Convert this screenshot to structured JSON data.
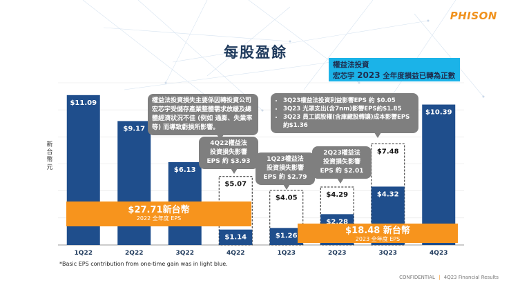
{
  "slide": {
    "title": "每股盈餘",
    "logo": "PHISON",
    "ylabel": "新台幣元",
    "footnote": "*Basic EPS contribution from one-time gain was in light blue.",
    "footer_left": "CONFIDENTIAL",
    "footer_right": "4Q23 Financial Results"
  },
  "colors": {
    "bar": "#1f4e8c",
    "accent": "#f7941d",
    "callout": "#7f7f7f",
    "highlight": "#1bb3e8"
  },
  "callouts": {
    "main": "權益法投資損失主要係因轉投資公司宏芯宇受儲存產業整體需求放緩及總體經濟狀況不佳 (例如 通膨、失業率等) 而導致虧損所影響。",
    "q4_22": [
      "4Q22權益法",
      "投資損失影響",
      "EPS 約 $3.93"
    ],
    "q1_23": [
      "1Q23權益法",
      "投資損失影響",
      "EPS 約 $2.79"
    ],
    "q2_23": [
      "2Q23權益法",
      "投資損失影響",
      "EPS 約 $2.01"
    ],
    "q3_23": [
      "3Q23權益法投資利益影響EPS 約 $0.05",
      "3Q23 光罩支出(含7nm)影響EPS約$1.85",
      "3Q23 員工認股權(含庫藏股轉讓)成本影響EPS約$1.36"
    ],
    "top_line1": "權益法投資",
    "top_line2a": "宏芯宇",
    "top_line2b": "2023",
    "top_line2c": "全年度損益已轉為正數"
  },
  "banners": {
    "y2022": {
      "amount": "$27.71新台幣",
      "label": "2022 全年度 EPS"
    },
    "y2023": {
      "amount": "$18.48 新台幣",
      "label": "2023 全年度 EPS"
    }
  },
  "chart_data": {
    "type": "bar",
    "title": "每股盈餘",
    "ylabel": "新台幣元",
    "categories": [
      "1Q22",
      "2Q22",
      "3Q22",
      "4Q22",
      "1Q23",
      "2Q23",
      "3Q23",
      "4Q23"
    ],
    "values": [
      11.09,
      9.17,
      6.13,
      1.14,
      1.26,
      2.28,
      4.32,
      10.39
    ],
    "value_labels": [
      "$11.09",
      "$9.17",
      "$6.13",
      "$1.14",
      "$1.26",
      "$2.28",
      "$4.32",
      "$10.39"
    ],
    "excluding_loss_values": [
      null,
      null,
      null,
      5.07,
      4.05,
      4.29,
      7.48,
      null
    ],
    "excluding_loss_labels": [
      null,
      null,
      null,
      "$5.07",
      "$4.05",
      "$4.29",
      "$7.48",
      null
    ],
    "ylim": [
      0,
      12
    ],
    "grid": true
  }
}
